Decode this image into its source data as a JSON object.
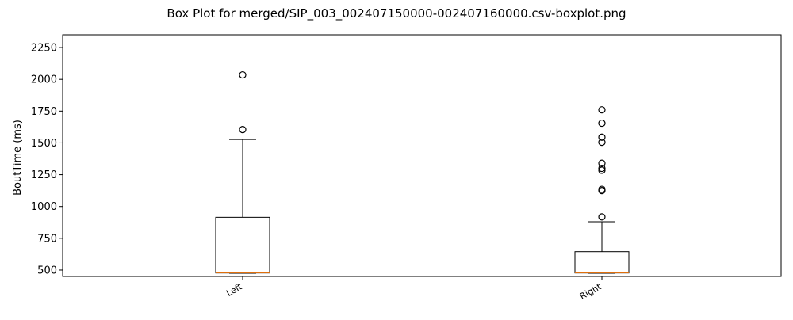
{
  "chart_data": {
    "type": "boxplot",
    "title": "Box Plot for merged/SIP_003_002407150000-002407160000.csv-boxplot.png",
    "xlabel": "",
    "ylabel": "BoutTime (ms)",
    "ylim": [
      450,
      2350
    ],
    "yticks": [
      500,
      750,
      1000,
      1250,
      1500,
      1750,
      2000,
      2250
    ],
    "categories": [
      "Left",
      "Right"
    ],
    "grid": false,
    "colors": {
      "box": "#000000",
      "median": "#ff7f0e",
      "flier": "#000000"
    },
    "boxes": [
      {
        "label": "Left",
        "whisker_low": 475,
        "q1": 477,
        "median": 480,
        "q3": 915,
        "whisker_high": 1527,
        "fliers": [
          1605,
          2035
        ]
      },
      {
        "label": "Right",
        "whisker_low": 475,
        "q1": 477,
        "median": 480,
        "q3": 645,
        "whisker_high": 880,
        "fliers": [
          918,
          1125,
          1135,
          1285,
          1300,
          1340,
          1505,
          1545,
          1655,
          1760
        ]
      }
    ]
  }
}
